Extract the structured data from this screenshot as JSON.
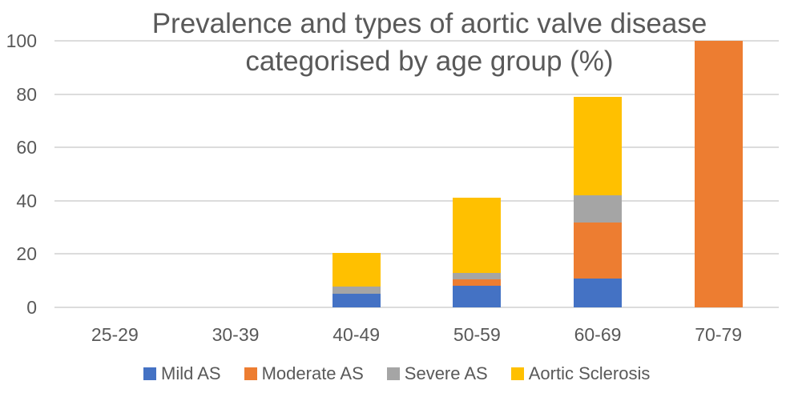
{
  "chart_data": {
    "type": "bar",
    "stacked": true,
    "title": "Prevalence and types of aortic valve disease categorised by age group (%)",
    "title_lines": [
      "Prevalence and types of aortic valve disease",
      "categorised by age group (%)"
    ],
    "xlabel": "",
    "ylabel": "",
    "categories": [
      "25-29",
      "30-39",
      "40-49",
      "50-59",
      "60-69",
      "70-79"
    ],
    "series": [
      {
        "name": "Mild AS",
        "color": "#4472C4",
        "values": [
          0,
          0,
          5,
          8,
          10.7,
          0
        ]
      },
      {
        "name": "Moderate AS",
        "color": "#ED7D31",
        "values": [
          0,
          0,
          0,
          2.5,
          21,
          100
        ]
      },
      {
        "name": "Severe AS",
        "color": "#A5A5A5",
        "values": [
          0,
          0,
          2.7,
          2.5,
          10.3,
          0
        ]
      },
      {
        "name": "Aortic Sclerosis",
        "color": "#FFC000",
        "values": [
          0,
          0,
          12.8,
          28,
          37,
          0
        ]
      }
    ],
    "totals": [
      0,
      0,
      20.5,
      41,
      79,
      100
    ],
    "ylim": [
      0,
      100
    ],
    "y_ticks": [
      0,
      20,
      40,
      60,
      80,
      100
    ],
    "grid": "horizontal",
    "legend_position": "bottom"
  },
  "colors": {
    "background": "#ffffff",
    "text": "#595959",
    "gridline": "#dcdcdc"
  }
}
